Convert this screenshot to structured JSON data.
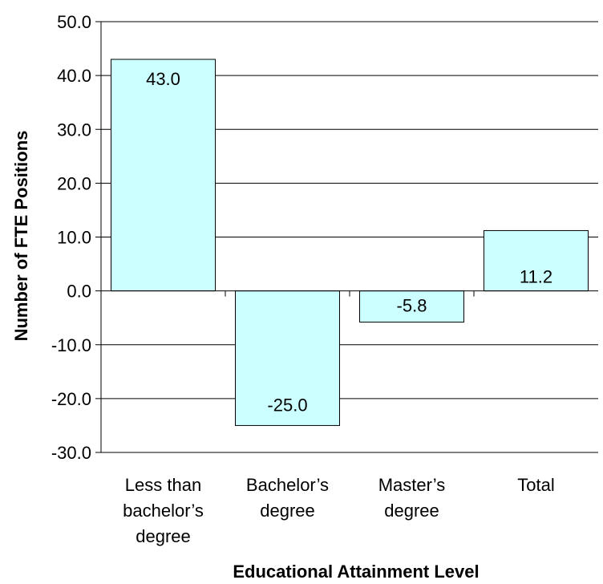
{
  "chart_data": {
    "type": "bar",
    "categories": [
      [
        "Less than",
        "bachelor’s",
        "degree"
      ],
      [
        "Bachelor’s",
        "degree"
      ],
      [
        "Master’s",
        "degree"
      ],
      [
        "Total"
      ]
    ],
    "values": [
      43.0,
      -25.0,
      -5.8,
      11.2
    ],
    "data_labels": [
      "43.0",
      "-25.0",
      "-5.8",
      "11.2"
    ],
    "yticks": [
      "50.0",
      "40.0",
      "30.0",
      "20.0",
      "10.0",
      "0.0",
      "-10.0",
      "-20.0",
      "-30.0"
    ],
    "ylim": [
      -30,
      50
    ],
    "xlabel": "Educational Attainment Level",
    "ylabel": "Number of FTE Positions",
    "grid": true,
    "bar_color": "#ccffff",
    "bar_edge_color": "#000000"
  }
}
